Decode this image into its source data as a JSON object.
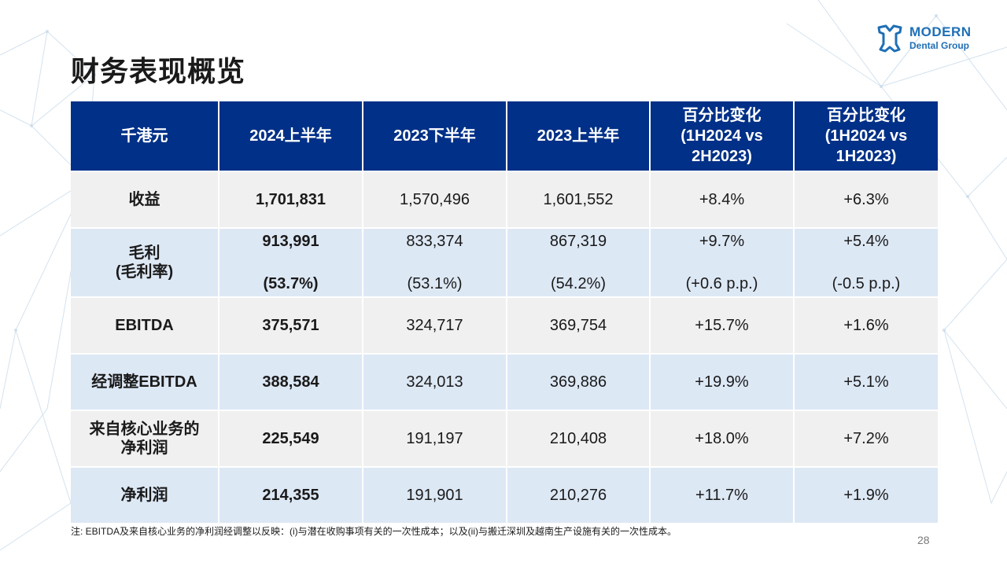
{
  "title": "财务表现概览",
  "logo": {
    "line1": "MODERN",
    "line2": "Dental Group",
    "color": "#1f6fb5",
    "icon": "tooth-icon"
  },
  "table": {
    "headers": [
      "千港元",
      "2024上半年",
      "2023下半年",
      "2023上半年",
      "百分比变化\n(1H2024 vs\n2H2023)",
      "百分比变化\n(1H2024 vs\n1H2023)"
    ],
    "header_bg": "#003087",
    "rows": [
      {
        "label": "收益",
        "values": [
          "1,701,831",
          "1,570,496",
          "1,601,552",
          "+8.4%",
          "+6.3%"
        ]
      },
      {
        "label": "毛利\n(毛利率)",
        "values": [
          "913,991",
          "833,374",
          "867,319",
          "+9.7%",
          "+5.4%"
        ],
        "sub_values": [
          "(53.7%)",
          "(53.1%)",
          "(54.2%)",
          "(+0.6 p.p.)",
          "(-0.5 p.p.)"
        ]
      },
      {
        "label": "EBITDA",
        "values": [
          "375,571",
          "324,717",
          "369,754",
          "+15.7%",
          "+1.6%"
        ]
      },
      {
        "label": "经调整EBITDA",
        "values": [
          "388,584",
          "324,013",
          "369,886",
          "+19.9%",
          "+5.1%"
        ]
      },
      {
        "label": "来自核心业务的\n净利润",
        "values": [
          "225,549",
          "191,197",
          "210,408",
          "+18.0%",
          "+7.2%"
        ]
      },
      {
        "label": "净利润",
        "values": [
          "214,355",
          "191,901",
          "210,276",
          "+11.7%",
          "+1.9%"
        ]
      }
    ]
  },
  "footnote": "注: EBITDA及来自核心业务的净利润经调整以反映：(i)与潜在收购事项有关的一次性成本；以及(ii)与搬迁深圳及越南生产设施有关的一次性成本。",
  "page_number": "28"
}
